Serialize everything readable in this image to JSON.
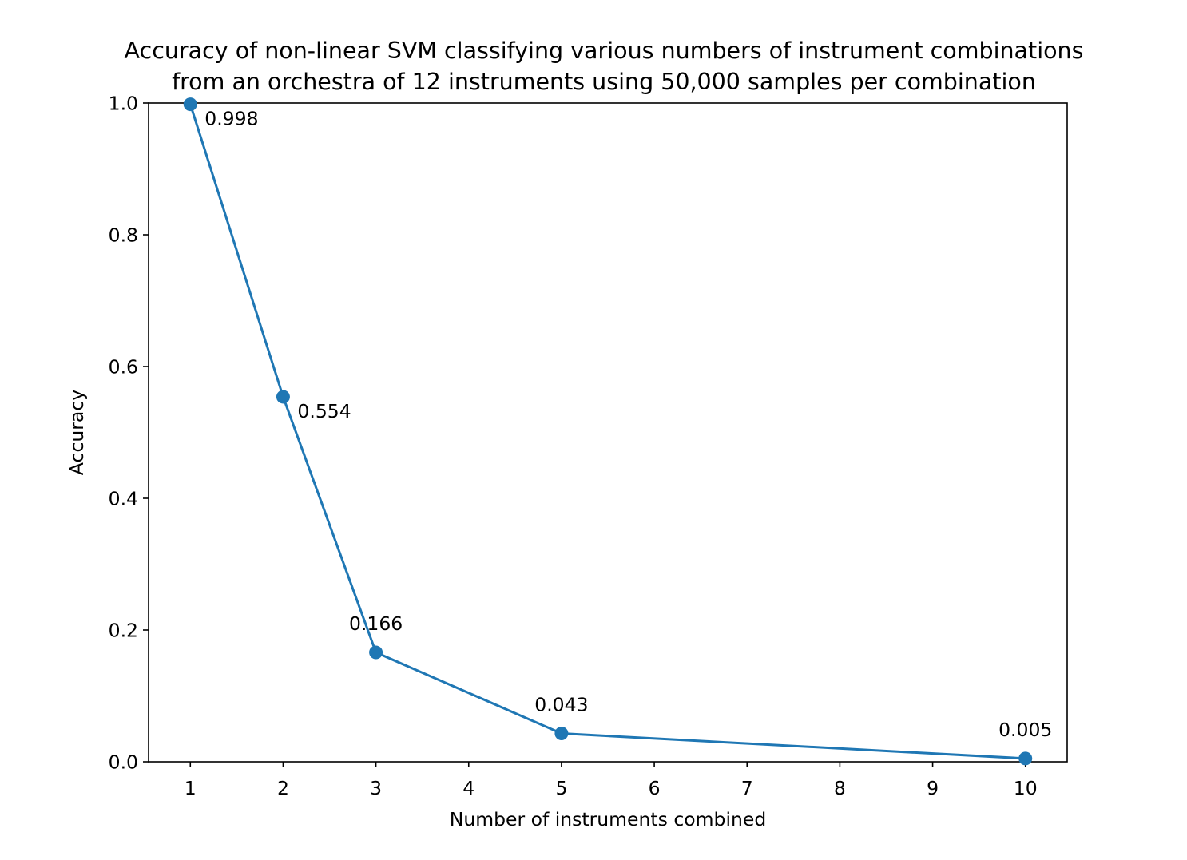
{
  "chart_data": {
    "type": "line",
    "title": "Accuracy of non-linear SVM classifying various numbers of instrument combinations\nfrom an orchestra of 12 instruments using 50,000 samples per combination",
    "title_lines": [
      "Accuracy of non-linear SVM classifying various numbers of instrument combinations",
      "from an orchestra of 12 instruments using 50,000 samples per combination"
    ],
    "xlabel": "Number of instruments combined",
    "ylabel": "Accuracy",
    "xlim": [
      0.55,
      10.45
    ],
    "ylim": [
      0,
      1.0
    ],
    "x_ticks": [
      1,
      2,
      3,
      4,
      5,
      6,
      7,
      8,
      9,
      10
    ],
    "x_tick_labels": [
      "1",
      "2",
      "3",
      "4",
      "5",
      "6",
      "7",
      "8",
      "9",
      "10"
    ],
    "y_ticks": [
      0.0,
      0.2,
      0.4,
      0.6,
      0.8,
      1.0
    ],
    "y_tick_labels": [
      "0.0",
      "0.2",
      "0.4",
      "0.6",
      "0.8",
      "1.0"
    ],
    "grid": false,
    "series": [
      {
        "x": [
          1,
          2,
          3,
          5,
          10
        ],
        "y": [
          0.998,
          0.554,
          0.166,
          0.043,
          0.005
        ],
        "color": "#1f77b4",
        "marker": "circle"
      }
    ],
    "data_labels": [
      "0.998",
      "0.554",
      "0.166",
      "0.043",
      "0.005"
    ],
    "data_label_placement": [
      "below-right",
      "below-right",
      "above",
      "above",
      "above"
    ]
  }
}
